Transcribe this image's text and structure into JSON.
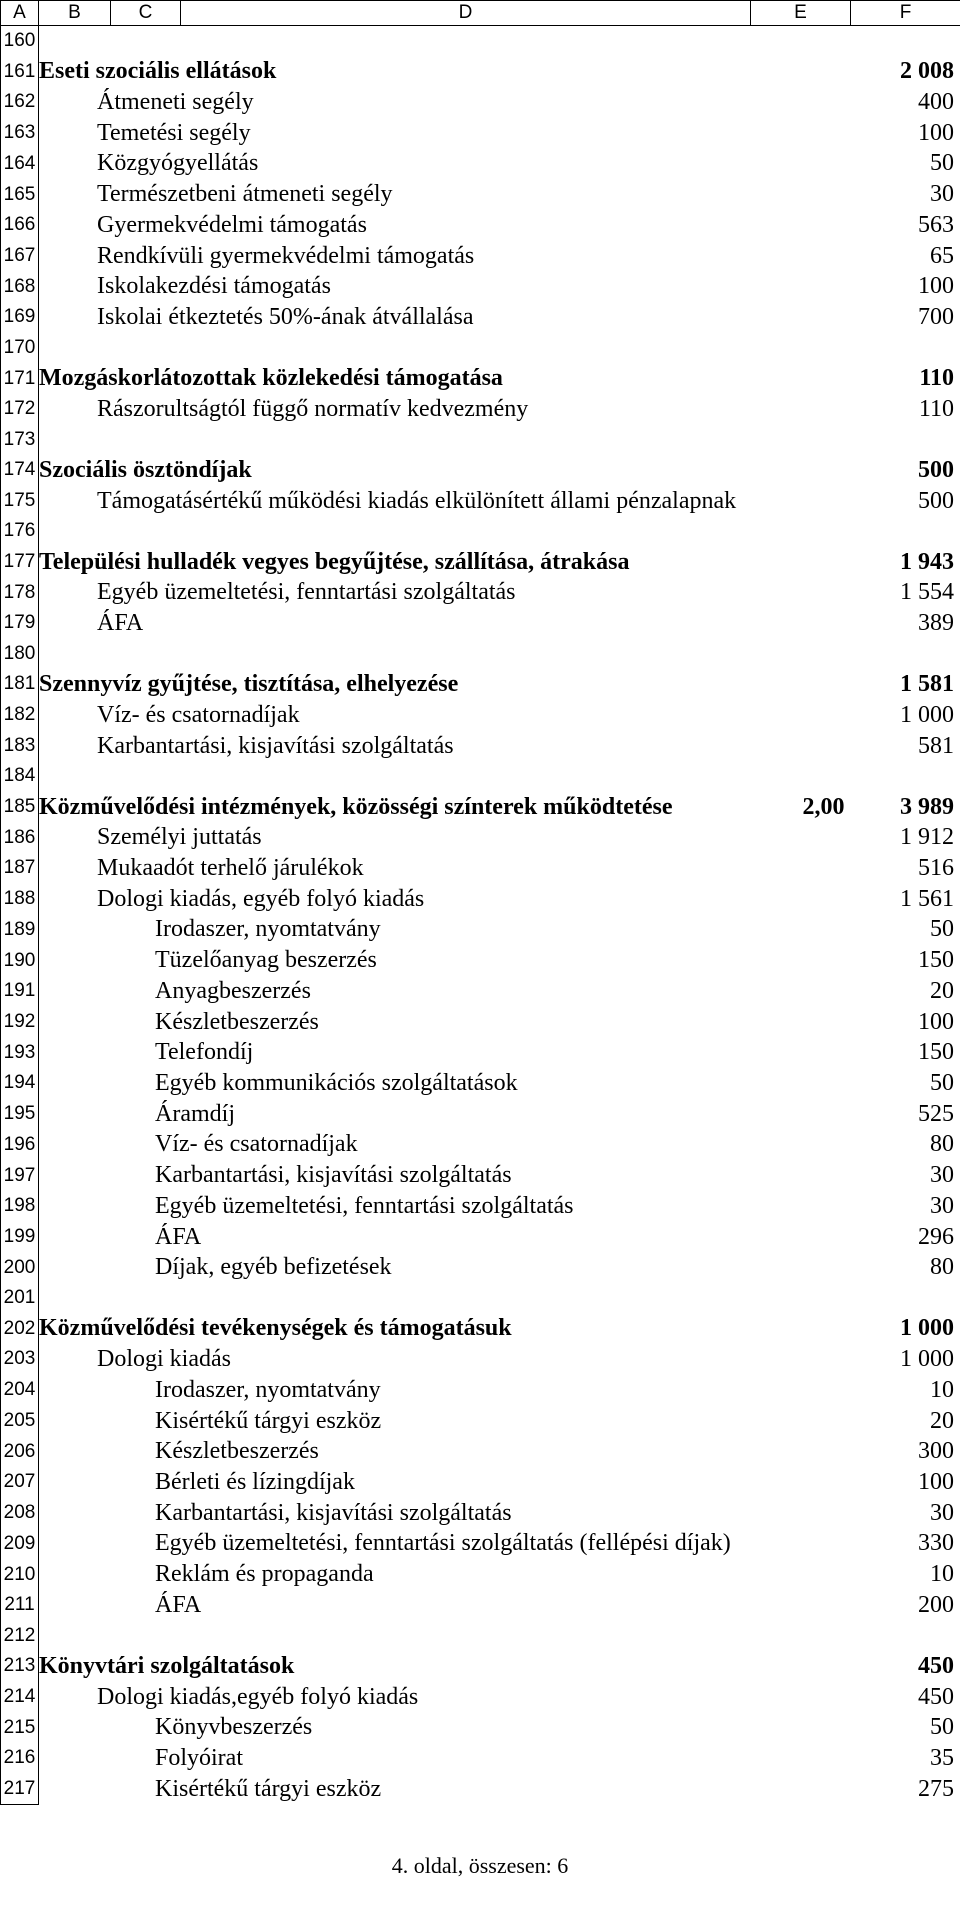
{
  "columns": [
    "A",
    "B",
    "C",
    "D",
    "E",
    "F"
  ],
  "footer": "4. oldal, összesen: 6",
  "rows": [
    {
      "n": 160,
      "label": "",
      "indent": 0,
      "bold": false,
      "e": "",
      "f": ""
    },
    {
      "n": 161,
      "label": "Eseti szociális ellátások",
      "indent": 0,
      "bold": true,
      "e": "",
      "f": "2 008"
    },
    {
      "n": 162,
      "label": "Átmeneti segély",
      "indent": 1,
      "bold": false,
      "e": "",
      "f": "400"
    },
    {
      "n": 163,
      "label": "Temetési segély",
      "indent": 1,
      "bold": false,
      "e": "",
      "f": "100"
    },
    {
      "n": 164,
      "label": "Közgyógyellátás",
      "indent": 1,
      "bold": false,
      "e": "",
      "f": "50"
    },
    {
      "n": 165,
      "label": "Természetbeni átmeneti segély",
      "indent": 1,
      "bold": false,
      "e": "",
      "f": "30"
    },
    {
      "n": 166,
      "label": "Gyermekvédelmi támogatás",
      "indent": 1,
      "bold": false,
      "e": "",
      "f": "563"
    },
    {
      "n": 167,
      "label": "Rendkívüli gyermekvédelmi támogatás",
      "indent": 1,
      "bold": false,
      "e": "",
      "f": "65"
    },
    {
      "n": 168,
      "label": "Iskolakezdési támogatás",
      "indent": 1,
      "bold": false,
      "e": "",
      "f": "100"
    },
    {
      "n": 169,
      "label": "Iskolai étkeztetés 50%-ának átvállalása",
      "indent": 1,
      "bold": false,
      "e": "",
      "f": "700"
    },
    {
      "n": 170,
      "label": "",
      "indent": 0,
      "bold": false,
      "e": "",
      "f": ""
    },
    {
      "n": 171,
      "label": "Mozgáskorlátozottak közlekedési támogatása",
      "indent": 0,
      "bold": true,
      "e": "",
      "f": "110"
    },
    {
      "n": 172,
      "label": "Rászorultságtól függő normatív kedvezmény",
      "indent": 1,
      "bold": false,
      "e": "",
      "f": "110"
    },
    {
      "n": 173,
      "label": "",
      "indent": 0,
      "bold": false,
      "e": "",
      "f": ""
    },
    {
      "n": 174,
      "label": "Szociális ösztöndíjak",
      "indent": 0,
      "bold": true,
      "e": "",
      "f": "500"
    },
    {
      "n": 175,
      "label": "Támogatásértékű működési kiadás elkülönített állami pénzalapnak",
      "indent": 1,
      "bold": false,
      "e": "",
      "f": "500"
    },
    {
      "n": 176,
      "label": "",
      "indent": 0,
      "bold": false,
      "e": "",
      "f": ""
    },
    {
      "n": 177,
      "label": "Települési hulladék vegyes begyűjtése, szállítása, átrakása",
      "indent": 0,
      "bold": true,
      "e": "",
      "f": "1 943"
    },
    {
      "n": 178,
      "label": "Egyéb üzemeltetési, fenntartási szolgáltatás",
      "indent": 1,
      "bold": false,
      "e": "",
      "f": "1 554"
    },
    {
      "n": 179,
      "label": "ÁFA",
      "indent": 1,
      "bold": false,
      "e": "",
      "f": "389"
    },
    {
      "n": 180,
      "label": "",
      "indent": 0,
      "bold": false,
      "e": "",
      "f": ""
    },
    {
      "n": 181,
      "label": "Szennyvíz gyűjtése, tisztítása, elhelyezése",
      "indent": 0,
      "bold": true,
      "e": "",
      "f": "1 581"
    },
    {
      "n": 182,
      "label": "Víz- és csatornadíjak",
      "indent": 1,
      "bold": false,
      "e": "",
      "f": "1 000"
    },
    {
      "n": 183,
      "label": "Karbantartási, kisjavítási szolgáltatás",
      "indent": 1,
      "bold": false,
      "e": "",
      "f": "581"
    },
    {
      "n": 184,
      "label": "",
      "indent": 0,
      "bold": false,
      "e": "",
      "f": ""
    },
    {
      "n": 185,
      "label": "Közművelődési intézmények, közösségi színterek működtetése",
      "indent": 0,
      "bold": true,
      "e": "2,00",
      "f": "3 989"
    },
    {
      "n": 186,
      "label": "Személyi juttatás",
      "indent": 1,
      "bold": false,
      "e": "",
      "f": "1 912"
    },
    {
      "n": 187,
      "label": "Mukaadót terhelő járulékok",
      "indent": 1,
      "bold": false,
      "e": "",
      "f": "516"
    },
    {
      "n": 188,
      "label": "Dologi kiadás, egyéb folyó kiadás",
      "indent": 1,
      "bold": false,
      "e": "",
      "f": "1 561"
    },
    {
      "n": 189,
      "label": "Irodaszer, nyomtatvány",
      "indent": 2,
      "bold": false,
      "e": "",
      "f": "50"
    },
    {
      "n": 190,
      "label": "Tüzelőanyag beszerzés",
      "indent": 2,
      "bold": false,
      "e": "",
      "f": "150"
    },
    {
      "n": 191,
      "label": "Anyagbeszerzés",
      "indent": 2,
      "bold": false,
      "e": "",
      "f": "20"
    },
    {
      "n": 192,
      "label": "Készletbeszerzés",
      "indent": 2,
      "bold": false,
      "e": "",
      "f": "100"
    },
    {
      "n": 193,
      "label": "Telefondíj",
      "indent": 2,
      "bold": false,
      "e": "",
      "f": "150"
    },
    {
      "n": 194,
      "label": "Egyéb kommunikációs szolgáltatások",
      "indent": 2,
      "bold": false,
      "e": "",
      "f": "50"
    },
    {
      "n": 195,
      "label": "Áramdíj",
      "indent": 2,
      "bold": false,
      "e": "",
      "f": "525"
    },
    {
      "n": 196,
      "label": "Víz- és csatornadíjak",
      "indent": 2,
      "bold": false,
      "e": "",
      "f": "80"
    },
    {
      "n": 197,
      "label": "Karbantartási, kisjavítási szolgáltatás",
      "indent": 2,
      "bold": false,
      "e": "",
      "f": "30"
    },
    {
      "n": 198,
      "label": "Egyéb üzemeltetési, fenntartási szolgáltatás",
      "indent": 2,
      "bold": false,
      "e": "",
      "f": "30"
    },
    {
      "n": 199,
      "label": "ÁFA",
      "indent": 2,
      "bold": false,
      "e": "",
      "f": "296"
    },
    {
      "n": 200,
      "label": "Díjak, egyéb befizetések",
      "indent": 2,
      "bold": false,
      "e": "",
      "f": "80"
    },
    {
      "n": 201,
      "label": "",
      "indent": 0,
      "bold": false,
      "e": "",
      "f": ""
    },
    {
      "n": 202,
      "label": "Közművelődési tevékenységek és támogatásuk",
      "indent": 0,
      "bold": true,
      "e": "",
      "f": "1 000"
    },
    {
      "n": 203,
      "label": "Dologi kiadás",
      "indent": 1,
      "bold": false,
      "e": "",
      "f": "1 000"
    },
    {
      "n": 204,
      "label": "Irodaszer, nyomtatvány",
      "indent": 2,
      "bold": false,
      "e": "",
      "f": "10"
    },
    {
      "n": 205,
      "label": "Kisértékű tárgyi eszköz",
      "indent": 2,
      "bold": false,
      "e": "",
      "f": "20"
    },
    {
      "n": 206,
      "label": "Készletbeszerzés",
      "indent": 2,
      "bold": false,
      "e": "",
      "f": "300"
    },
    {
      "n": 207,
      "label": "Bérleti és lízingdíjak",
      "indent": 2,
      "bold": false,
      "e": "",
      "f": "100"
    },
    {
      "n": 208,
      "label": "Karbantartási, kisjavítási szolgáltatás",
      "indent": 2,
      "bold": false,
      "e": "",
      "f": "30"
    },
    {
      "n": 209,
      "label": "Egyéb üzemeltetési, fenntartási szolgáltatás (fellépési díjak)",
      "indent": 2,
      "bold": false,
      "e": "",
      "f": "330"
    },
    {
      "n": 210,
      "label": "Reklám és propaganda",
      "indent": 2,
      "bold": false,
      "e": "",
      "f": "10"
    },
    {
      "n": 211,
      "label": "ÁFA",
      "indent": 2,
      "bold": false,
      "e": "",
      "f": "200"
    },
    {
      "n": 212,
      "label": "",
      "indent": 0,
      "bold": false,
      "e": "",
      "f": ""
    },
    {
      "n": 213,
      "label": "Könyvtári szolgáltatások",
      "indent": 0,
      "bold": true,
      "e": "",
      "f": "450"
    },
    {
      "n": 214,
      "label": "Dologi kiadás,egyéb folyó kiadás",
      "indent": 1,
      "bold": false,
      "e": "",
      "f": "450"
    },
    {
      "n": 215,
      "label": "Könyvbeszerzés",
      "indent": 2,
      "bold": false,
      "e": "",
      "f": "50"
    },
    {
      "n": 216,
      "label": "Folyóirat",
      "indent": 2,
      "bold": false,
      "e": "",
      "f": "35"
    },
    {
      "n": 217,
      "label": "Kisértékű tárgyi eszköz",
      "indent": 2,
      "bold": false,
      "e": "",
      "f": "275"
    }
  ]
}
